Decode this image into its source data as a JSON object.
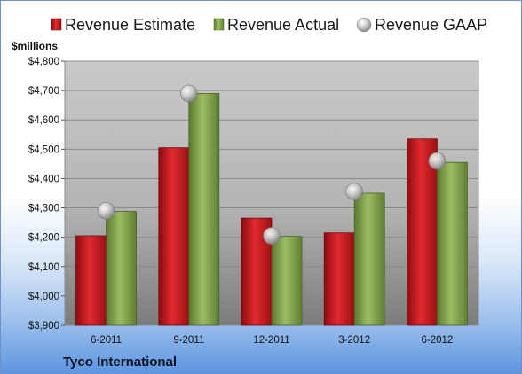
{
  "chart_data": {
    "type": "bar",
    "title": "",
    "ylabel": "$millions",
    "xlabel": "",
    "categories": [
      "6-2011",
      "9-2011",
      "12-2011",
      "3-2012",
      "6-2012"
    ],
    "ylim": [
      3900,
      4800
    ],
    "yticks": [
      3900,
      4000,
      4100,
      4200,
      4300,
      4400,
      4500,
      4600,
      4700,
      4800
    ],
    "ytick_labels": [
      "$3,900",
      "$4,000",
      "$4,100",
      "$4,200",
      "$4,300",
      "$4,400",
      "$4,500",
      "$4,600",
      "$4,700",
      "$4,800"
    ],
    "grid": true,
    "legend_position": "top",
    "series": [
      {
        "name": "Revenue Estimate",
        "kind": "bar",
        "color": "#c8161d",
        "values": [
          4205,
          4505,
          4265,
          4215,
          4535
        ]
      },
      {
        "name": "Revenue Actual",
        "kind": "bar",
        "color": "#7ea04a",
        "values": [
          4288,
          4690,
          4203,
          4350,
          4455
        ]
      },
      {
        "name": "Revenue GAAP",
        "kind": "marker",
        "color": "#b8b8b8",
        "values": [
          4290,
          4690,
          4205,
          4355,
          4460
        ]
      }
    ],
    "footer_label": "Tyco International"
  }
}
